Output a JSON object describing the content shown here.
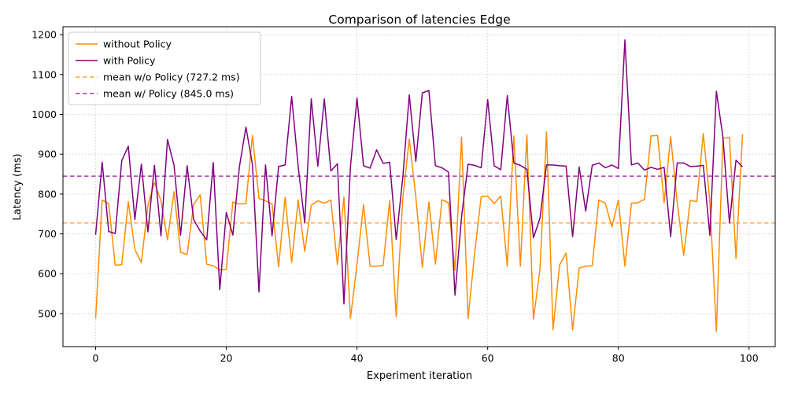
{
  "chart_data": {
    "type": "line",
    "title": "Comparison of latencies Edge",
    "xlabel": "Experiment iteration",
    "ylabel": "Latency (ms)",
    "xlim": [
      -5,
      104
    ],
    "ylim": [
      417,
      1220
    ],
    "x_ticks": [
      0,
      20,
      40,
      60,
      80,
      100
    ],
    "y_ticks": [
      500,
      600,
      700,
      800,
      900,
      1000,
      1100,
      1200
    ],
    "grid": true,
    "legend_position": "top-left",
    "series": [
      {
        "name": "without Policy",
        "color": "#ff8c00",
        "style": "solid",
        "x_start": 0,
        "values": [
          488,
          785,
          776,
          621,
          623,
          781,
          661,
          628,
          772,
          829,
          783,
          685,
          806,
          654,
          648,
          774,
          798,
          624,
          620,
          610,
          611,
          780,
          775,
          776,
          947,
          789,
          783,
          775,
          617,
          792,
          628,
          785,
          656,
          772,
          783,
          777,
          785,
          623,
          792,
          488,
          624,
          773,
          619,
          619,
          621,
          784,
          492,
          788,
          938,
          793,
          616,
          780,
          624,
          786,
          778,
          608,
          943,
          488,
          651,
          793,
          795,
          776,
          795,
          619,
          946,
          619,
          949,
          486,
          611,
          956,
          459,
          622,
          652,
          459,
          614,
          619,
          620,
          785,
          777,
          717,
          785,
          619,
          777,
          778,
          787,
          946,
          947,
          778,
          944,
          780,
          646,
          784,
          781,
          952,
          781,
          455,
          940,
          942,
          638,
          950
        ]
      },
      {
        "name": "with Policy",
        "color": "#800080",
        "style": "solid",
        "x_start": 0,
        "values": [
          698,
          880,
          706,
          701,
          884,
          920,
          736,
          875,
          705,
          872,
          695,
          937,
          872,
          697,
          871,
          736,
          707,
          685,
          879,
          560,
          754,
          697,
          868,
          968,
          874,
          554,
          873,
          695,
          869,
          873,
          1045,
          869,
          728,
          1039,
          870,
          1039,
          858,
          876,
          524,
          869,
          1041,
          871,
          865,
          911,
          877,
          880,
          686,
          840,
          1049,
          882,
          1054,
          1060,
          871,
          866,
          855,
          546,
          743,
          875,
          872,
          866,
          1037,
          871,
          861,
          1047,
          878,
          872,
          862,
          690,
          739,
          873,
          873,
          871,
          870,
          693,
          868,
          757,
          872,
          878,
          866,
          873,
          864,
          1187,
          873,
          878,
          860,
          867,
          862,
          867,
          693,
          878,
          878,
          869,
          870,
          872,
          696,
          1058,
          943,
          727,
          885,
          868
        ]
      },
      {
        "name": "mean w/o Policy (727.2 ms)",
        "color": "#ff8c00",
        "style": "dashed",
        "constant": 727.2
      },
      {
        "name": "mean w/ Policy (845.0 ms)",
        "color": "#800080",
        "style": "dashed",
        "constant": 845.0
      }
    ]
  }
}
